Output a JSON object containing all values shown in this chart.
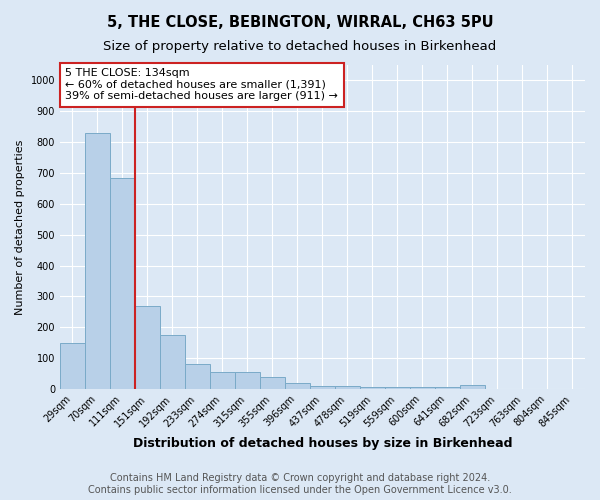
{
  "title": "5, THE CLOSE, BEBINGTON, WIRRAL, CH63 5PU",
  "subtitle": "Size of property relative to detached houses in Birkenhead",
  "xlabel": "Distribution of detached houses by size in Birkenhead",
  "ylabel": "Number of detached properties",
  "categories": [
    "29sqm",
    "70sqm",
    "111sqm",
    "151sqm",
    "192sqm",
    "233sqm",
    "274sqm",
    "315sqm",
    "355sqm",
    "396sqm",
    "437sqm",
    "478sqm",
    "519sqm",
    "559sqm",
    "600sqm",
    "641sqm",
    "682sqm",
    "723sqm",
    "763sqm",
    "804sqm",
    "845sqm"
  ],
  "values": [
    148,
    830,
    685,
    270,
    175,
    80,
    55,
    55,
    40,
    18,
    10,
    8,
    5,
    5,
    5,
    5,
    13,
    0,
    0,
    0,
    0
  ],
  "bar_color": "#b8d0e8",
  "bar_edge_color": "#7aaac8",
  "vline_x_index": 2,
  "vline_color": "#cc2222",
  "annotation_text": "5 THE CLOSE: 134sqm\n← 60% of detached houses are smaller (1,391)\n39% of semi-detached houses are larger (911) →",
  "annotation_box_facecolor": "#ffffff",
  "annotation_box_edgecolor": "#cc2222",
  "ylim": [
    0,
    1050
  ],
  "yticks": [
    0,
    100,
    200,
    300,
    400,
    500,
    600,
    700,
    800,
    900,
    1000
  ],
  "footer_line1": "Contains HM Land Registry data © Crown copyright and database right 2024.",
  "footer_line2": "Contains public sector information licensed under the Open Government Licence v3.0.",
  "bg_color": "#dce8f5",
  "plot_bg_color": "#dce8f5",
  "title_fontsize": 10.5,
  "subtitle_fontsize": 9.5,
  "xlabel_fontsize": 9,
  "ylabel_fontsize": 8,
  "tick_fontsize": 7,
  "footer_fontsize": 7,
  "annotation_fontsize": 8
}
